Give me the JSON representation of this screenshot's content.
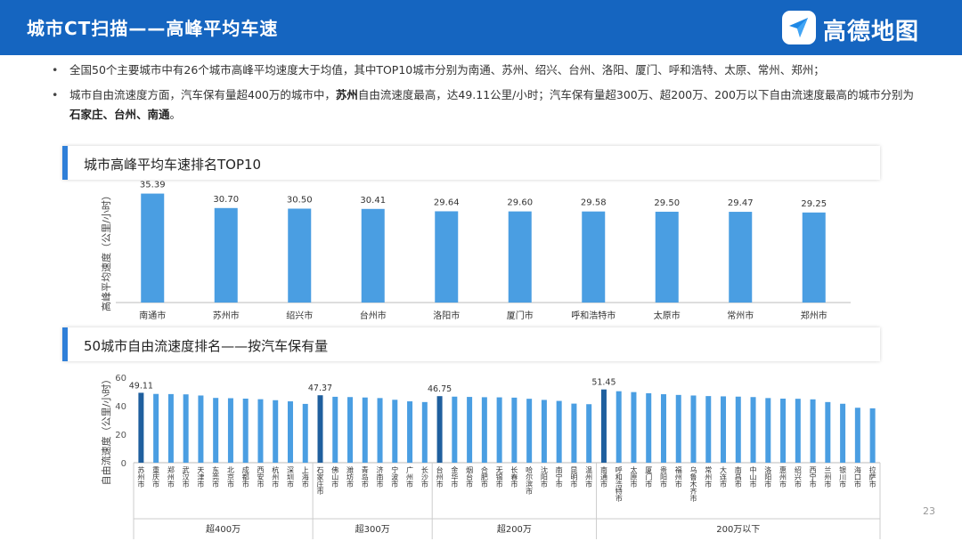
{
  "header": {
    "title": "城市CT扫描——高峰平均车速"
  },
  "logo": {
    "text": "高德地图"
  },
  "bullets": {
    "b1": "全国50个主要城市中有26个城市高峰平均速度大于均值，其中TOP10城市分别为南通、苏州、绍兴、台州、洛阳、厦门、呼和浩特、太原、常州、郑州；",
    "b2_a": "城市自由流速度方面，汽车保有量超400万的城市中，",
    "b2_bold1": "苏州",
    "b2_b": "自由流速度最高，达49.11公里/小时；汽车保有量超300万、超200万、200万以下自由流速度最高的城市分别为",
    "b2_bold2": "石家庄、台州、南通",
    "b2_c": "。"
  },
  "section1": {
    "title": "城市高峰平均车速排名TOP10",
    "ylabel": "高峰平均速度（公里/小时）"
  },
  "section2": {
    "title": "50城市自由流速度排名——按汽车保有量",
    "ylabel": "自由流速度（公里/小时）"
  },
  "page_number": "23",
  "colors": {
    "bar": "#4a9ee2",
    "highlight": "#1f5f9e",
    "header": "#1565c0"
  },
  "chart_data": [
    {
      "type": "bar",
      "title": "城市高峰平均车速排名TOP10",
      "ylabel": "高峰平均速度（公里/小时）",
      "categories": [
        "南通市",
        "苏州市",
        "绍兴市",
        "台州市",
        "洛阳市",
        "厦门市",
        "呼和浩特市",
        "太原市",
        "常州市",
        "郑州市"
      ],
      "values": [
        35.39,
        30.7,
        30.5,
        30.41,
        29.64,
        29.6,
        29.58,
        29.5,
        29.47,
        29.25
      ],
      "value_labels": [
        "35.39",
        "30.70",
        "30.50",
        "30.41",
        "29.64",
        "29.60",
        "29.58",
        "29.50",
        "29.47",
        "29.25"
      ],
      "ylim": [
        0,
        37
      ]
    },
    {
      "type": "bar",
      "title": "50城市自由流速度排名——按汽车保有量",
      "ylabel": "自由流速度（公里/小时）",
      "ylim": [
        0,
        60
      ],
      "yticks": [
        "0",
        "20",
        "40",
        "60"
      ],
      "groups": [
        {
          "name": "超400万",
          "categories": [
            "苏州市",
            "重庆市",
            "郑州市",
            "武汉市",
            "天津市",
            "东莞市",
            "北京市",
            "成都市",
            "西安市",
            "杭州市",
            "深圳市",
            "上海市"
          ],
          "values": [
            49.11,
            48.3,
            48.2,
            48.0,
            47.2,
            45.5,
            45.3,
            45.0,
            44.6,
            43.9,
            43.1,
            41.3
          ],
          "label": "49.11"
        },
        {
          "name": "超300万",
          "categories": [
            "石家庄市",
            "佛山市",
            "潍坊市",
            "青岛市",
            "济南市",
            "宁波市",
            "广州市",
            "长沙市"
          ],
          "values": [
            47.37,
            46.3,
            46.1,
            45.8,
            45.4,
            44.2,
            43.1,
            42.6
          ],
          "label": "47.37"
        },
        {
          "name": "超200万",
          "categories": [
            "台州市",
            "金华市",
            "烟台市",
            "合肥市",
            "无锡市",
            "长春市",
            "哈尔滨市",
            "沈阳市",
            "南宁市",
            "昆明市",
            "温州市"
          ],
          "values": [
            46.75,
            46.4,
            46.2,
            46.0,
            45.9,
            45.7,
            44.9,
            44.1,
            43.4,
            41.5,
            41.1
          ],
          "label": "46.75"
        },
        {
          "name": "200万以下",
          "categories": [
            "南通市",
            "呼和浩特市",
            "太原市",
            "厦门市",
            "贵阳市",
            "福州市",
            "乌鲁木齐市",
            "常州市",
            "大连市",
            "南昌市",
            "中山市",
            "洛阳市",
            "惠州市",
            "绍兴市",
            "西宁市",
            "兰州市",
            "银川市",
            "海口市",
            "拉萨市"
          ],
          "values": [
            51.45,
            50.2,
            49.6,
            48.8,
            48.1,
            47.6,
            47.2,
            46.8,
            46.6,
            46.4,
            46.1,
            45.4,
            45.0,
            44.9,
            44.5,
            42.6,
            41.4,
            38.6,
            38.2
          ],
          "label": "51.45"
        }
      ]
    }
  ]
}
